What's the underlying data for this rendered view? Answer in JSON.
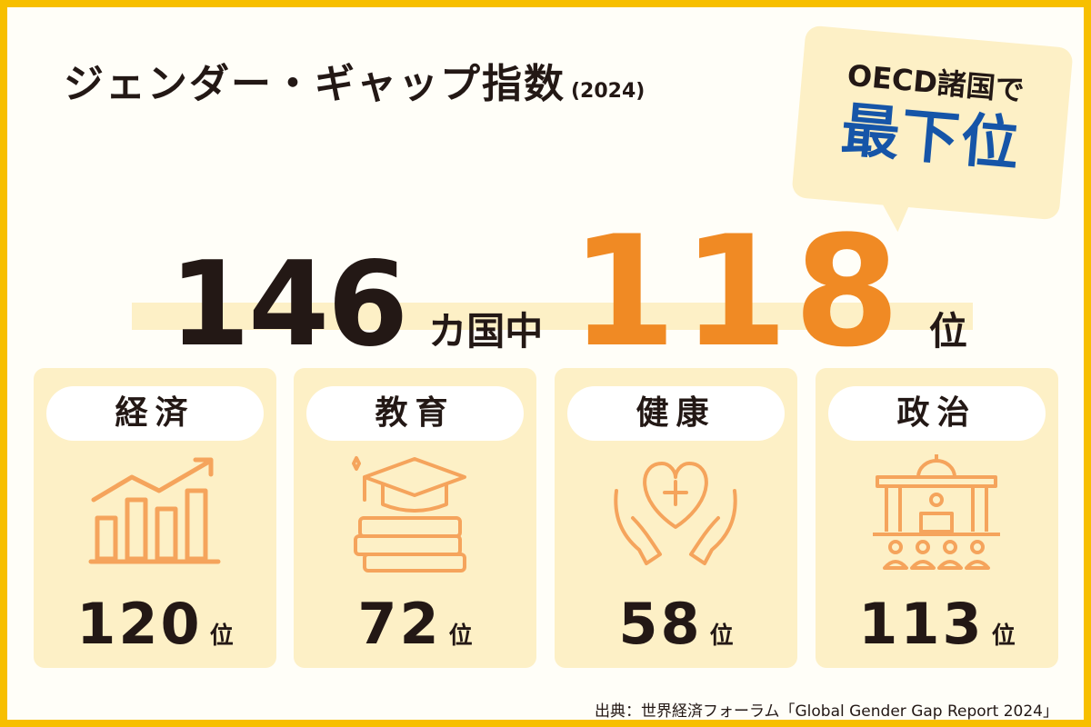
{
  "title": {
    "main": "ジェンダー・ギャップ指数",
    "year": "(2024)"
  },
  "bubble": {
    "line1": "OECD諸国で",
    "line2": "最下位"
  },
  "ranking": {
    "total": "146",
    "mid": "カ国中",
    "rank": "118",
    "unit": "位"
  },
  "categories": [
    {
      "label": "経済",
      "rank": "120",
      "unit": "位",
      "icon": "chart-growth-icon"
    },
    {
      "label": "教育",
      "rank": "72",
      "unit": "位",
      "icon": "graduation-books-icon"
    },
    {
      "label": "健康",
      "rank": "58",
      "unit": "位",
      "icon": "heart-hands-icon"
    },
    {
      "label": "政治",
      "rank": "113",
      "unit": "位",
      "icon": "parliament-icon"
    }
  ],
  "source": "出典：世界経済フォーラム「Global Gender Gap Report 2024」",
  "colors": {
    "border": "#F7BF00",
    "accent": "#F08A24",
    "blue": "#1655A8",
    "card": "#FDF0C6"
  }
}
